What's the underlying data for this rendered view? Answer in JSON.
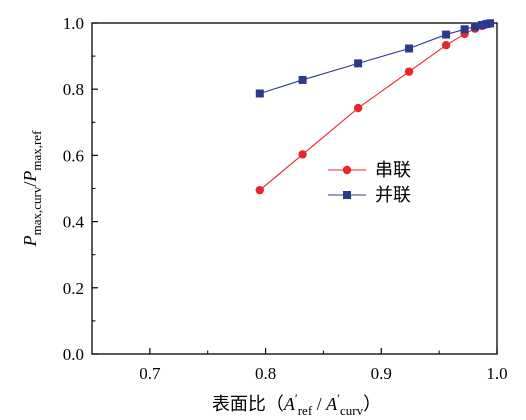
{
  "chart_data": {
    "type": "line",
    "title": "",
    "xlabel": {
      "prefix": "表面比（",
      "a": "A",
      "prime": "′",
      "sub1": "ref",
      "sep": " / ",
      "sub2": "curv",
      "suffix": "）"
    },
    "ylabel": {
      "p1": "P",
      "sub1": "max,curv",
      "slash": "/",
      "p2": "P",
      "sub2": "max,ref"
    },
    "xlim": [
      0.65,
      1.0
    ],
    "ylim": [
      0.0,
      1.0
    ],
    "xticks": [
      0.7,
      0.8,
      0.9,
      1.0
    ],
    "xtick_labels": [
      "0.7",
      "0.8",
      "0.9",
      "1.0"
    ],
    "yticks": [
      0.0,
      0.2,
      0.4,
      0.6,
      0.8,
      1.0
    ],
    "ytick_labels": [
      "0.0",
      "0.2",
      "0.4",
      "0.6",
      "0.8",
      "1.0"
    ],
    "grid": false,
    "legend_position": "center-right",
    "series": [
      {
        "name": "串联",
        "color": "#e8262b",
        "marker": "circle",
        "x": [
          0.795,
          0.832,
          0.88,
          0.924,
          0.956,
          0.972,
          0.981,
          0.987,
          0.991,
          0.994
        ],
        "y": [
          0.495,
          0.603,
          0.743,
          0.853,
          0.933,
          0.967,
          0.983,
          0.991,
          0.996,
          0.999
        ]
      },
      {
        "name": "并联",
        "color": "#2b3a8f",
        "marker": "square",
        "x": [
          0.795,
          0.832,
          0.88,
          0.924,
          0.956,
          0.972,
          0.981,
          0.987,
          0.991,
          0.994
        ],
        "y": [
          0.787,
          0.828,
          0.878,
          0.923,
          0.965,
          0.981,
          0.989,
          0.994,
          0.997,
          0.999
        ]
      }
    ]
  }
}
